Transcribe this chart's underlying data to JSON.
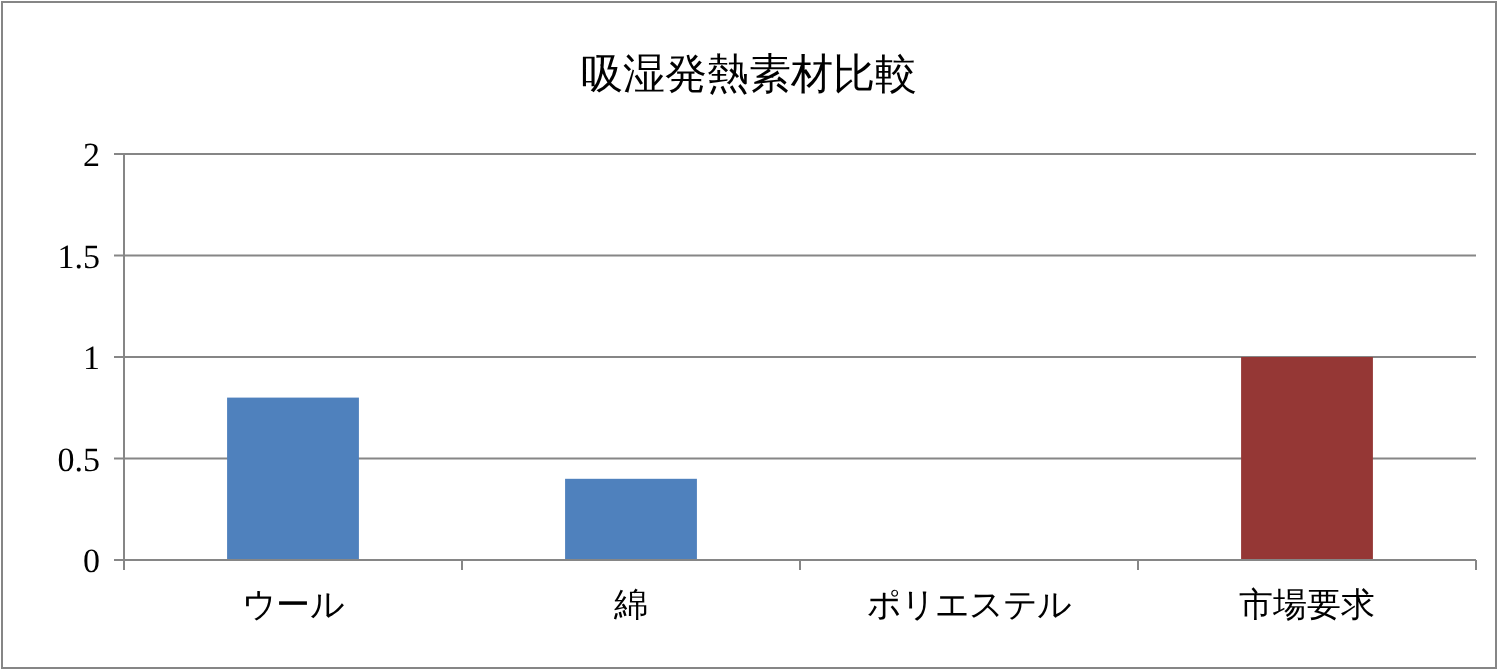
{
  "chart_data": {
    "type": "bar",
    "title": "吸湿発熱素材比較",
    "categories": [
      "ウール",
      "綿",
      "ポリエステル",
      "市場要求"
    ],
    "values": [
      0.8,
      0.4,
      0,
      1
    ],
    "colors": [
      "#4f81bd",
      "#4f81bd",
      "#4f81bd",
      "#953735"
    ],
    "ylim": [
      0,
      2
    ],
    "yticks": [
      0,
      0.5,
      1,
      1.5,
      2
    ],
    "grid": "y"
  }
}
